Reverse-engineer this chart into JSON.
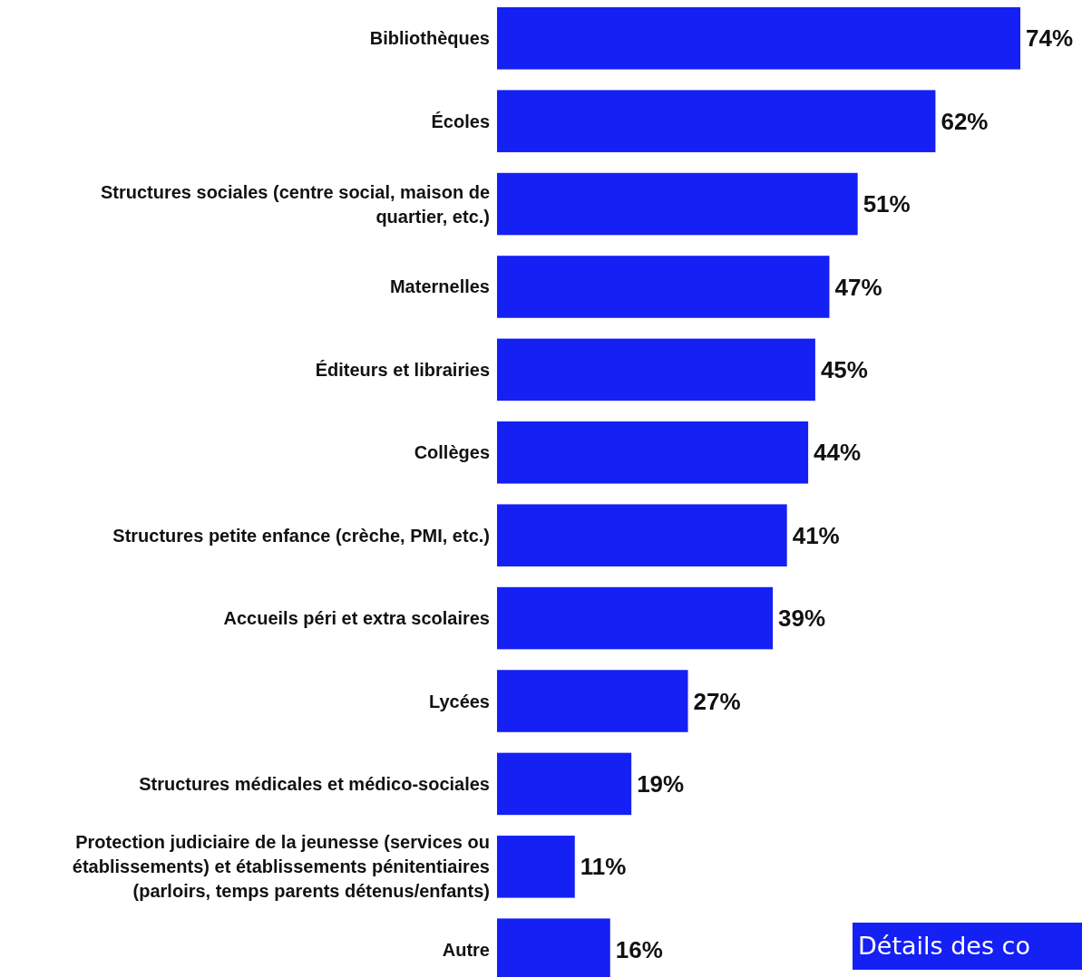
{
  "chart_data": {
    "type": "bar",
    "orientation": "horizontal",
    "color": "#1520f5",
    "categories": [
      "Bibliothèques",
      "Écoles",
      "Structures sociales (centre social, maison de quartier, etc.)",
      "Maternelles",
      "Éditeurs et librairies",
      "Collèges",
      "Structures petite enfance (crèche, PMI, etc.)",
      "Accueils péri et extra scolaires",
      "Lycées",
      "Structures médicales et médico-sociales",
      "Protection judiciaire de la jeunesse (services ou établissements) et établissements pénitentiaires (parloirs, temps parents détenus/enfants)",
      "Autre"
    ],
    "values": [
      74,
      62,
      51,
      47,
      45,
      44,
      41,
      39,
      27,
      19,
      11,
      16
    ],
    "value_labels": [
      "74%",
      "62%",
      "51%",
      "47%",
      "45%",
      "44%",
      "41%",
      "39%",
      "27%",
      "19%",
      "11%",
      "16%"
    ],
    "annotations": [
      "Détails des co"
    ]
  }
}
